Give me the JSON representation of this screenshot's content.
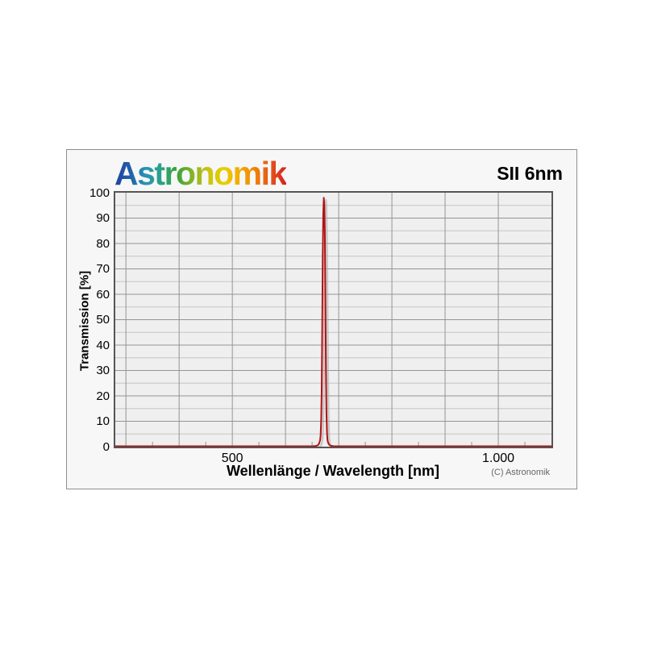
{
  "page": {
    "background": "#ffffff"
  },
  "header": {
    "logo_text": "Astronomik",
    "logo_gradient": [
      "#20409e",
      "#2160ab",
      "#2a93b5",
      "#2aa287",
      "#3aa33c",
      "#84b42a",
      "#c9c313",
      "#e8cf02",
      "#f2ab07",
      "#ee8409",
      "#e4541b",
      "#d62120"
    ],
    "title": "SII 6nm"
  },
  "footer": {
    "copyright": "(C) Astronomik"
  },
  "colors": {
    "curve": "#b11414",
    "curve_shadow": "#a8a8a8",
    "grid_major": "#949494",
    "grid_minor": "#c6c6c6",
    "plot_background": "#efefef",
    "box_background": "#f7f7f7",
    "plot_border": "#555555"
  },
  "chart_data": {
    "type": "line",
    "title": "SII 6nm",
    "xlabel": "Wellenlänge / Wavelength [nm]",
    "ylabel": "Transmission [%]",
    "x_range": [
      280,
      1100
    ],
    "y_range": [
      0,
      100
    ],
    "x_major_grid_step_nm": 100,
    "x_minor_tick_step_nm": 50,
    "y_major_grid_step_pct": 10,
    "y_minor_grid_step_pct": 5,
    "grid": "on",
    "legend": "none",
    "x_tick_labels": [
      {
        "value": 500,
        "label": "500"
      },
      {
        "value": 1000,
        "label": "1.000"
      }
    ],
    "y_tick_labels": [
      {
        "value": 100,
        "label": "100"
      },
      {
        "value": 90,
        "label": "90"
      },
      {
        "value": 80,
        "label": "80"
      },
      {
        "value": 70,
        "label": "70"
      },
      {
        "value": 60,
        "label": "60"
      },
      {
        "value": 50,
        "label": "50"
      },
      {
        "value": 40,
        "label": "40"
      },
      {
        "value": 30,
        "label": "30"
      },
      {
        "value": 20,
        "label": "20"
      },
      {
        "value": 10,
        "label": "10"
      },
      {
        "value": 0,
        "label": "0"
      }
    ],
    "peak": {
      "center_nm": 672,
      "fwhm_nm": 6,
      "peak_transmission_pct": 98,
      "out_of_band_transmission_pct": 0.15
    },
    "series": [
      {
        "name": "SII 6nm transmission",
        "points": [
          [
            280,
            0.15
          ],
          [
            600,
            0.15
          ],
          [
            640,
            0.15
          ],
          [
            652,
            0.2
          ],
          [
            658,
            0.3
          ],
          [
            661,
            0.6
          ],
          [
            663,
            1.2
          ],
          [
            665,
            2.5
          ],
          [
            666,
            4.5
          ],
          [
            667,
            10
          ],
          [
            668,
            22
          ],
          [
            669,
            47
          ],
          [
            670,
            75
          ],
          [
            671,
            92
          ],
          [
            672,
            98
          ],
          [
            673,
            95
          ],
          [
            674,
            83
          ],
          [
            675,
            58
          ],
          [
            676,
            30
          ],
          [
            677,
            13
          ],
          [
            678,
            5.5
          ],
          [
            679,
            2.5
          ],
          [
            680,
            1.6
          ],
          [
            682,
            0.8
          ],
          [
            685,
            0.35
          ],
          [
            690,
            0.2
          ],
          [
            700,
            0.15
          ],
          [
            900,
            0.15
          ],
          [
            1100,
            0.15
          ]
        ]
      }
    ]
  }
}
